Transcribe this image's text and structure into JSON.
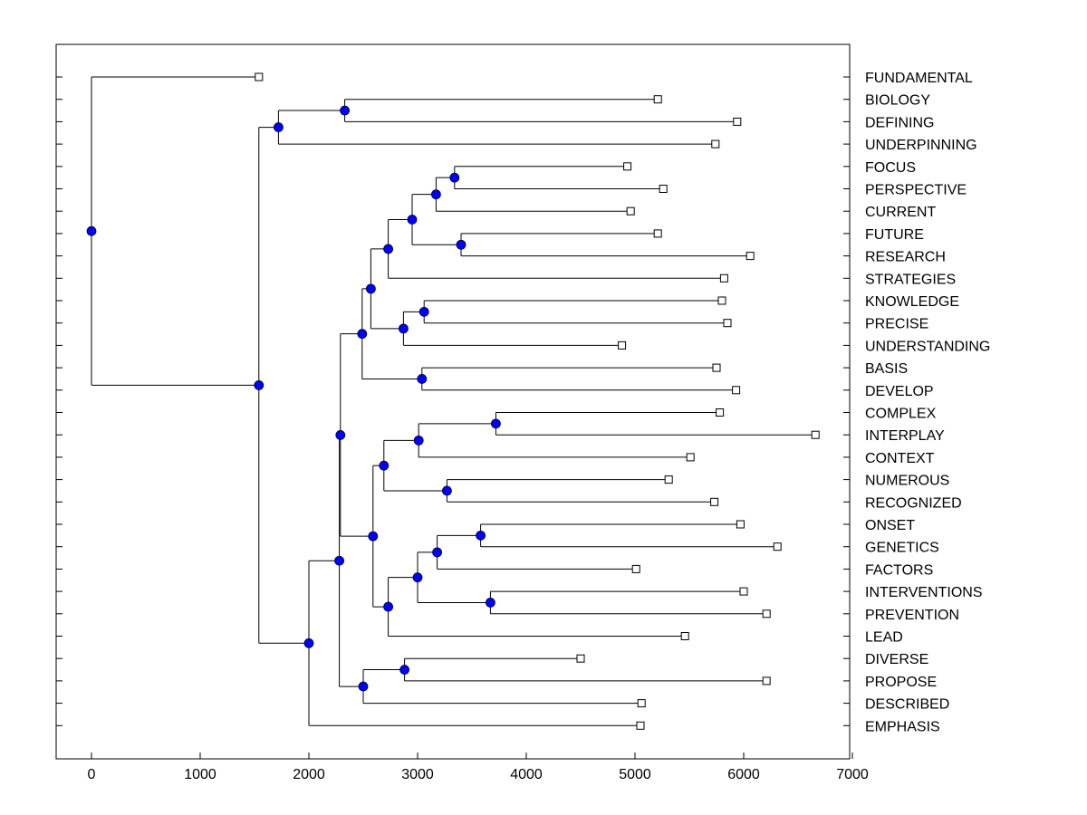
{
  "chart_data": {
    "type": "dendrogram",
    "x_ticks": [
      0,
      1000,
      2000,
      3000,
      4000,
      5000,
      6000,
      7000
    ],
    "xlim": [
      -330,
      7000
    ],
    "leaves": [
      {
        "label": "FUNDAMENTAL",
        "value": 1540
      },
      {
        "label": "BIOLOGY",
        "value": 5210
      },
      {
        "label": "DEFINING",
        "value": 5940
      },
      {
        "label": "UNDERPINNING",
        "value": 5740
      },
      {
        "label": "FOCUS",
        "value": 4930
      },
      {
        "label": "PERSPECTIVE",
        "value": 5260
      },
      {
        "label": "CURRENT",
        "value": 4960
      },
      {
        "label": "FUTURE",
        "value": 5210
      },
      {
        "label": "RESEARCH",
        "value": 6060
      },
      {
        "label": "STRATEGIES",
        "value": 5820
      },
      {
        "label": "KNOWLEDGE",
        "value": 5800
      },
      {
        "label": "PRECISE",
        "value": 5850
      },
      {
        "label": "UNDERSTANDING",
        "value": 4880
      },
      {
        "label": "BASIS",
        "value": 5750
      },
      {
        "label": "DEVELOP",
        "value": 5930
      },
      {
        "label": "COMPLEX",
        "value": 5780
      },
      {
        "label": "INTERPLAY",
        "value": 6660
      },
      {
        "label": "CONTEXT",
        "value": 5510
      },
      {
        "label": "NUMEROUS",
        "value": 5310
      },
      {
        "label": "RECOGNIZED",
        "value": 5730
      },
      {
        "label": "ONSET",
        "value": 5970
      },
      {
        "label": "GENETICS",
        "value": 6310
      },
      {
        "label": "FACTORS",
        "value": 5010
      },
      {
        "label": "INTERVENTIONS",
        "value": 6000
      },
      {
        "label": "PREVENTION",
        "value": 6210
      },
      {
        "label": "LEAD",
        "value": 5460
      },
      {
        "label": "DIVERSE",
        "value": 4500
      },
      {
        "label": "PROPOSE",
        "value": 6210
      },
      {
        "label": "DESCRIBED",
        "value": 5060
      },
      {
        "label": "EMPHASIS",
        "value": 5050
      }
    ],
    "tree": {
      "value": 0,
      "children": [
        {
          "leaf": 0
        },
        {
          "value": 1540,
          "children": [
            {
              "value": 1720,
              "children": [
                {
                  "value": 2330,
                  "children": [
                    {
                      "leaf": 1
                    },
                    {
                      "leaf": 2
                    }
                  ]
                },
                {
                  "leaf": 3
                }
              ]
            },
            {
              "value": 2000,
              "children": [
                {
                  "value": 2280,
                  "children": [
                    {
                      "value": 2290,
                      "children": [
                        {
                          "value": 2490,
                          "children": [
                            {
                              "value": 2570,
                              "children": [
                                {
                                  "value": 2730,
                                  "children": [
                                    {
                                      "value": 2950,
                                      "children": [
                                        {
                                          "value": 3170,
                                          "children": [
                                            {
                                              "value": 3340,
                                              "children": [
                                                {
                                                  "leaf": 4
                                                },
                                                {
                                                  "leaf": 5
                                                }
                                              ]
                                            },
                                            {
                                              "leaf": 6
                                            }
                                          ]
                                        },
                                        {
                                          "value": 3400,
                                          "children": [
                                            {
                                              "leaf": 7
                                            },
                                            {
                                              "leaf": 8
                                            }
                                          ]
                                        }
                                      ]
                                    },
                                    {
                                      "leaf": 9
                                    }
                                  ]
                                },
                                {
                                  "value": 2870,
                                  "children": [
                                    {
                                      "value": 3060,
                                      "children": [
                                        {
                                          "leaf": 10
                                        },
                                        {
                                          "leaf": 11
                                        }
                                      ]
                                    },
                                    {
                                      "leaf": 12
                                    }
                                  ]
                                }
                              ]
                            },
                            {
                              "value": 3040,
                              "children": [
                                {
                                  "leaf": 13
                                },
                                {
                                  "leaf": 14
                                }
                              ]
                            }
                          ]
                        },
                        {
                          "value": 2590,
                          "children": [
                            {
                              "value": 2690,
                              "children": [
                                {
                                  "value": 3010,
                                  "children": [
                                    {
                                      "value": 3720,
                                      "children": [
                                        {
                                          "leaf": 15
                                        },
                                        {
                                          "leaf": 16
                                        }
                                      ]
                                    },
                                    {
                                      "leaf": 17
                                    }
                                  ]
                                },
                                {
                                  "value": 3270,
                                  "children": [
                                    {
                                      "leaf": 18
                                    },
                                    {
                                      "leaf": 19
                                    }
                                  ]
                                }
                              ]
                            },
                            {
                              "value": 2730,
                              "children": [
                                {
                                  "value": 3000,
                                  "children": [
                                    {
                                      "value": 3180,
                                      "children": [
                                        {
                                          "value": 3580,
                                          "children": [
                                            {
                                              "leaf": 20
                                            },
                                            {
                                              "leaf": 21
                                            }
                                          ]
                                        },
                                        {
                                          "leaf": 22
                                        }
                                      ]
                                    },
                                    {
                                      "value": 3670,
                                      "children": [
                                        {
                                          "leaf": 23
                                        },
                                        {
                                          "leaf": 24
                                        }
                                      ]
                                    }
                                  ]
                                },
                                {
                                  "leaf": 25
                                }
                              ]
                            }
                          ]
                        }
                      ]
                    },
                    {
                      "value": 2500,
                      "children": [
                        {
                          "value": 2880,
                          "children": [
                            {
                              "leaf": 26
                            },
                            {
                              "leaf": 27
                            }
                          ]
                        },
                        {
                          "leaf": 28
                        }
                      ]
                    }
                  ]
                },
                {
                  "leaf": 29
                }
              ]
            }
          ]
        }
      ]
    },
    "colors": {
      "node_fill": "#0000ff",
      "leaf_fill": "#ffffff",
      "line": "#000000",
      "background": "#ffffff"
    }
  }
}
